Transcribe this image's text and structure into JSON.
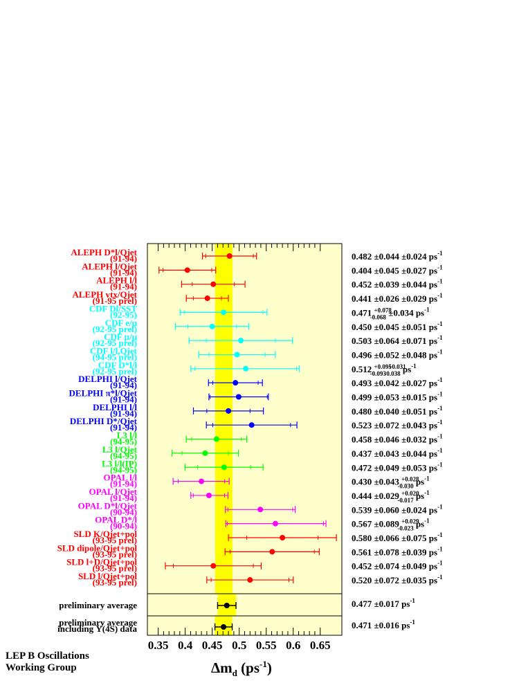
{
  "chart_data": {
    "type": "scatter",
    "subtype": "forest-plot-with-error-bars",
    "title": "",
    "xlabel_parts": {
      "main": "Δm",
      "sub": "d",
      "unit_open": " (ps",
      "unit_sup": "-1",
      "unit_close": ")"
    },
    "xlim": [
      0.33,
      0.69
    ],
    "xticks": [
      "0.35",
      "0.4",
      "0.45",
      "0.5",
      "0.55",
      "0.6",
      "0.65"
    ],
    "band": {
      "center": 0.4715,
      "halfwidth": 0.016,
      "color": "#ffff00"
    },
    "background_color": "#ffffcc",
    "measurements": [
      {
        "name": "ALEPH D*l/Qjet",
        "period": "(91-94)",
        "color": "#ff0000",
        "value": 0.482,
        "stat": 0.044,
        "syst_up": 0.024,
        "syst_dn": 0.024,
        "result": {
          "val": "0.482",
          "a": "±0.044",
          "b": "±0.024"
        }
      },
      {
        "name": "ALEPH l/Qjet",
        "period": "(91-94)",
        "color": "#ff0000",
        "value": 0.404,
        "stat": 0.045,
        "syst_up": 0.027,
        "syst_dn": 0.027,
        "result": {
          "val": "0.404",
          "a": "±0.045",
          "b": "±0.027"
        }
      },
      {
        "name": "ALEPH l/l",
        "period": "(91-94)",
        "color": "#ff0000",
        "value": 0.452,
        "stat": 0.039,
        "syst_up": 0.044,
        "syst_dn": 0.044,
        "result": {
          "val": "0.452",
          "a": "±0.039",
          "b": "±0.044"
        }
      },
      {
        "name": "ALEPH vtx/Qjet",
        "period": "(91-95 prel)",
        "color": "#ff0000",
        "value": 0.441,
        "stat": 0.026,
        "syst_up": 0.029,
        "syst_dn": 0.029,
        "result": {
          "val": "0.441",
          "a": "±0.026",
          "b": "±0.029"
        }
      },
      {
        "name": "CDF Dl/SST",
        "period": "(92-95)",
        "color": "#00ffff",
        "value": 0.471,
        "stat": 0.073,
        "syst_up": 0.034,
        "syst_dn": 0.034,
        "result": {
          "val": "0.471",
          "a_up": "+0.078",
          "a_dn": "-0.068",
          "b": "±0.034"
        }
      },
      {
        "name": "CDF e/μ",
        "period": "(92-95 prel)",
        "color": "#00ffff",
        "value": 0.45,
        "stat": 0.045,
        "syst_up": 0.051,
        "syst_dn": 0.051,
        "result": {
          "val": "0.450",
          "a": "±0.045",
          "b": "±0.051"
        }
      },
      {
        "name": "CDF μ/μ",
        "period": "(92-95 prel)",
        "color": "#00ffff",
        "value": 0.503,
        "stat": 0.064,
        "syst_up": 0.071,
        "syst_dn": 0.071,
        "result": {
          "val": "0.503",
          "a": "±0.064",
          "b": "±0.071"
        }
      },
      {
        "name": "CDF l/l,Qjet",
        "period": "(94-95 prel)",
        "color": "#00ffff",
        "value": 0.496,
        "stat": 0.052,
        "syst_up": 0.048,
        "syst_dn": 0.048,
        "result": {
          "val": "0.496",
          "a": "±0.052",
          "b": "±0.048"
        }
      },
      {
        "name": "CDF D*l/l",
        "period": "(92-95 prel)",
        "color": "#00ffff",
        "value": 0.512,
        "stat": 0.094,
        "syst_up": 0.031,
        "syst_dn": 0.038,
        "result": {
          "val": "0.512",
          "a_up": "+0.095",
          "a_dn": "-0.093",
          "b_up": "+0.031",
          "b_dn": "-0.038"
        }
      },
      {
        "name": "DELPHI l/Qjet",
        "period": "(91-94)",
        "color": "#0000ff",
        "value": 0.493,
        "stat": 0.042,
        "syst_up": 0.027,
        "syst_dn": 0.027,
        "result": {
          "val": "0.493",
          "a": "±0.042",
          "b": "±0.027"
        }
      },
      {
        "name": "DELPHI π*l/Qjet",
        "period": "(91-94)",
        "color": "#0000ff",
        "value": 0.499,
        "stat": 0.053,
        "syst_up": 0.015,
        "syst_dn": 0.015,
        "result": {
          "val": "0.499",
          "a": "±0.053",
          "b": "±0.015"
        }
      },
      {
        "name": "DELPHI l/l",
        "period": "(91-94)",
        "color": "#0000ff",
        "value": 0.48,
        "stat": 0.04,
        "syst_up": 0.051,
        "syst_dn": 0.051,
        "result": {
          "val": "0.480",
          "a": "±0.040",
          "b": "±0.051"
        }
      },
      {
        "name": "DELPHI D*/Qjet",
        "period": "(91-94)",
        "color": "#0000ff",
        "value": 0.523,
        "stat": 0.072,
        "syst_up": 0.043,
        "syst_dn": 0.043,
        "result": {
          "val": "0.523",
          "a": "±0.072",
          "b": "±0.043"
        }
      },
      {
        "name": "L3 l/l",
        "period": "(94-95)",
        "color": "#00ff00",
        "value": 0.458,
        "stat": 0.046,
        "syst_up": 0.032,
        "syst_dn": 0.032,
        "result": {
          "val": "0.458",
          "a": "±0.046",
          "b": "±0.032"
        }
      },
      {
        "name": "L3 l/Qjet",
        "period": "(94-95)",
        "color": "#00ff00",
        "value": 0.437,
        "stat": 0.043,
        "syst_up": 0.044,
        "syst_dn": 0.044,
        "result": {
          "val": "0.437",
          "a": "±0.043",
          "b": "±0.044"
        }
      },
      {
        "name": "L3 l/l(IP)",
        "period": "(94-95)",
        "color": "#00ff00",
        "value": 0.472,
        "stat": 0.049,
        "syst_up": 0.053,
        "syst_dn": 0.053,
        "result": {
          "val": "0.472",
          "a": "±0.049",
          "b": "±0.053"
        }
      },
      {
        "name": "OPAL l/l",
        "period": "(91-94)",
        "color": "#ff00ff",
        "value": 0.43,
        "stat": 0.043,
        "syst_up": 0.028,
        "syst_dn": 0.03,
        "result": {
          "val": "0.430",
          "a": "±0.043",
          "b_up": "+0.028",
          "b_dn": "-0.030"
        }
      },
      {
        "name": "OPAL l/Qjet",
        "period": "(91-94)",
        "color": "#ff00ff",
        "value": 0.444,
        "stat": 0.029,
        "syst_up": 0.02,
        "syst_dn": 0.017,
        "result": {
          "val": "0.444",
          "a": "±0.029",
          "b_up": "+0.020",
          "b_dn": "-0.017"
        }
      },
      {
        "name": "OPAL D*l/Qjet",
        "period": "(90-94)",
        "color": "#ff00ff",
        "value": 0.539,
        "stat": 0.06,
        "syst_up": 0.024,
        "syst_dn": 0.024,
        "result": {
          "val": "0.539",
          "a": "±0.060",
          "b": "±0.024"
        }
      },
      {
        "name": "OPAL D*/l",
        "period": "(90-94)",
        "color": "#ff00ff",
        "value": 0.567,
        "stat": 0.089,
        "syst_up": 0.029,
        "syst_dn": 0.023,
        "result": {
          "val": "0.567",
          "a": "±0.089",
          "b_up": "+0.029",
          "b_dn": "-0.023"
        }
      },
      {
        "name": "SLD K/Qjet+pol",
        "period": "(93-95 prel)",
        "color": "#ff0000",
        "value": 0.58,
        "stat": 0.066,
        "syst_up": 0.075,
        "syst_dn": 0.075,
        "result": {
          "val": "0.580",
          "a": "±0.066",
          "b": "±0.075"
        }
      },
      {
        "name": "SLD dipole/Qjet+pol",
        "period": "(93-95 prel)",
        "color": "#ff0000",
        "value": 0.561,
        "stat": 0.078,
        "syst_up": 0.039,
        "syst_dn": 0.039,
        "result": {
          "val": "0.561",
          "a": "±0.078",
          "b": "±0.039"
        }
      },
      {
        "name": "SLD l+D/Qjet+pol",
        "period": "(93-95 prel)",
        "color": "#ff0000",
        "value": 0.452,
        "stat": 0.074,
        "syst_up": 0.049,
        "syst_dn": 0.049,
        "result": {
          "val": "0.452",
          "a": "±0.074",
          "b": "±0.049"
        }
      },
      {
        "name": "SLD l/Qjet+pol",
        "period": "(93-95 prel)",
        "color": "#ff0000",
        "value": 0.52,
        "stat": 0.072,
        "syst_up": 0.035,
        "syst_dn": 0.035,
        "result": {
          "val": "0.520",
          "a": "±0.072",
          "b": "±0.035"
        }
      }
    ],
    "averages": [
      {
        "label": "preliminary average",
        "label2": "",
        "value": 0.477,
        "err": 0.017,
        "band_halfwidth": 0.017,
        "color": "#000000",
        "result": {
          "val": "0.477",
          "a": "±0.017"
        }
      },
      {
        "label": "preliminary average",
        "label2": "including Υ(4S) data",
        "value": 0.471,
        "err": 0.016,
        "band_halfwidth": 0.016,
        "color": "#000000",
        "result": {
          "val": "0.471",
          "a": "±0.016"
        }
      }
    ],
    "unit": "ps",
    "unit_exp": "-1"
  },
  "footer": {
    "line1": "LEP B Oscillations",
    "line2": "Working Group"
  }
}
